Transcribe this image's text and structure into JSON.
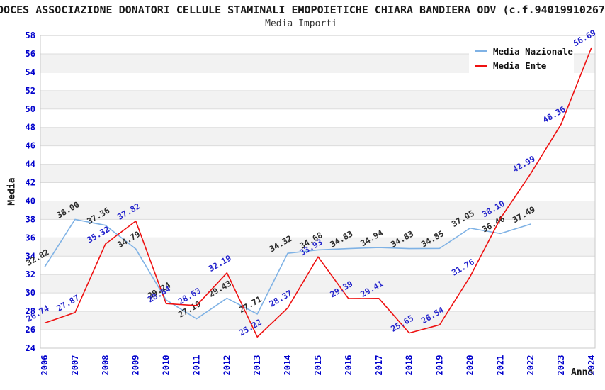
{
  "chart_data": {
    "type": "line",
    "title": "DOCES ASSOCIAZIONE DONATORI CELLULE STAMINALI EMOPOIETICHE CHIARA BANDIERA ODV (c.f.94019910267",
    "subtitle": "Media Importi",
    "xlabel": "Anno",
    "ylabel": "Media",
    "ylim": [
      24,
      58
    ],
    "ytick_step": 2,
    "grid": "horizontal-bands-on",
    "legend_position": "top-right",
    "categories": [
      "2006",
      "2007",
      "2008",
      "2009",
      "2010",
      "2011",
      "2012",
      "2013",
      "2014",
      "2015",
      "2016",
      "2017",
      "2018",
      "2019",
      "2020",
      "2021",
      "2022",
      "2023",
      "2024"
    ],
    "series": [
      {
        "name": "Media Nazionale",
        "color": "#7fb2e5",
        "label_color": "#2b2b2b",
        "values": [
          32.82,
          38.0,
          37.36,
          34.79,
          29.24,
          27.19,
          29.43,
          27.71,
          34.32,
          34.68,
          34.83,
          34.94,
          34.83,
          34.85,
          37.05,
          36.46,
          37.49,
          null,
          null
        ]
      },
      {
        "name": "Media Ente",
        "color": "#ee1111",
        "label_color": "#2222cc",
        "values": [
          26.74,
          27.87,
          35.32,
          37.82,
          28.84,
          28.63,
          32.19,
          25.22,
          28.37,
          33.93,
          29.39,
          29.41,
          25.65,
          26.54,
          31.76,
          38.1,
          42.99,
          48.36,
          56.69
        ]
      }
    ],
    "colors": {
      "tick_label": "#0000cc",
      "band_gray": "#f2f2f2",
      "band_white": "#ffffff",
      "gridline": "#dcdcdc",
      "plot_border": "#c9c9c9"
    }
  }
}
